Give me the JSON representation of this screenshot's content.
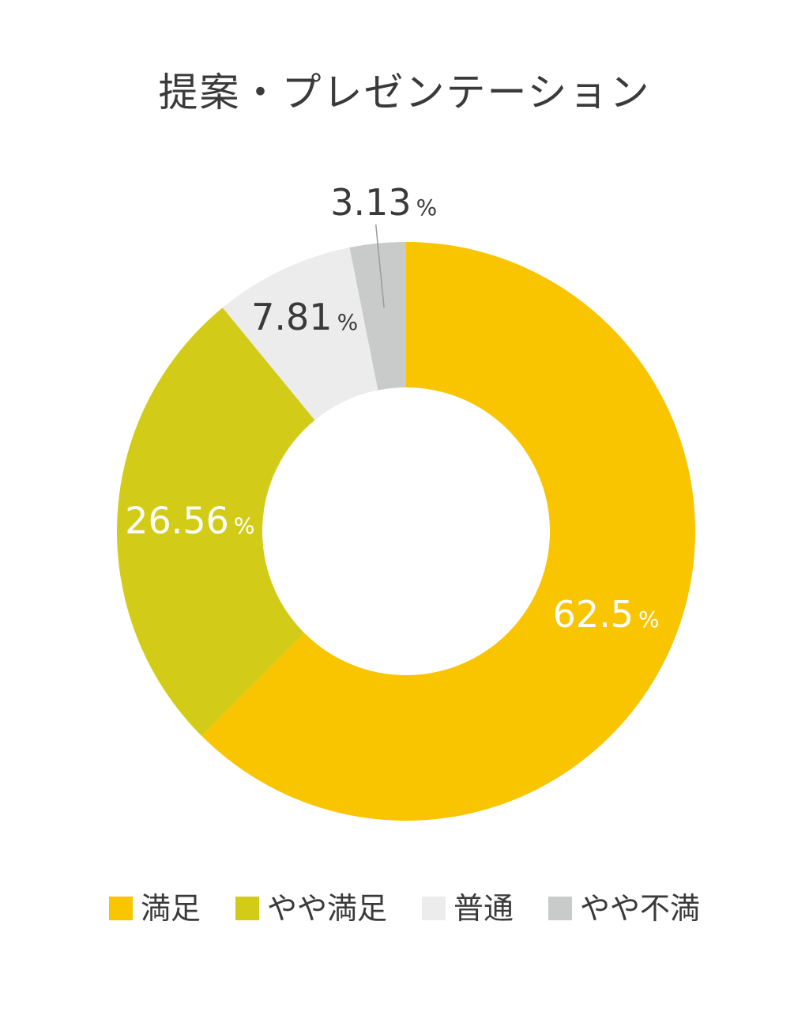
{
  "chart_data": {
    "type": "pie",
    "title": "提案・プレゼンテーション",
    "categories": [
      "満足",
      "やや満足",
      "普通",
      "やや不満"
    ],
    "values": [
      62.5,
      26.56,
      7.81,
      3.13
    ],
    "value_labels": [
      "62.5",
      "26.56",
      "7.81",
      "3.13"
    ],
    "unit": "%",
    "colors": [
      "#f9c400",
      "#d2cc18",
      "#ececec",
      "#c9caca"
    ],
    "label_colors": [
      "#ffffff",
      "#ffffff",
      "#3a3a3a",
      "#3a3a3a"
    ],
    "style": "donut",
    "legend": "bottom"
  }
}
